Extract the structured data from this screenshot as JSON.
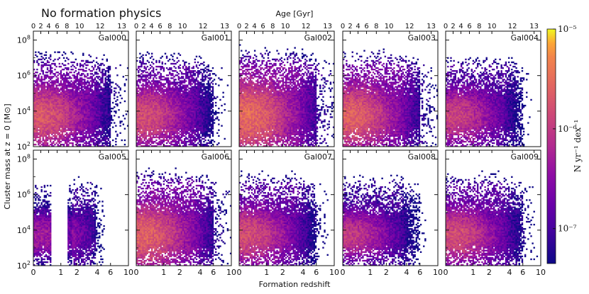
{
  "figure_title": "No formation physics",
  "chart_data": {
    "type": "heatmap",
    "title": "No formation physics",
    "top_axis_label": "Age [Gyr]",
    "top_ticks": [
      "0",
      "2",
      "4",
      "6",
      "8",
      "10",
      "12",
      "13"
    ],
    "top_tick_age": [
      0,
      2,
      4,
      6,
      8,
      10,
      12,
      13
    ],
    "xlabel": "Formation redshift",
    "x_ticks": [
      "0",
      "1",
      "2",
      "4",
      "6",
      "10"
    ],
    "x_tick_values": [
      0,
      1,
      2,
      4,
      6,
      10
    ],
    "xlim": [
      0,
      10
    ],
    "ylabel": "Cluster mass at z = 0 [M⊙]",
    "y_tick_exponents": [
      2,
      4,
      6,
      8
    ],
    "ylim_log10": [
      2,
      8.5
    ],
    "colorbar_label": "N yr⁻¹ dex⁻¹",
    "colorbar_ticks": [
      {
        "label": "10⁻⁵",
        "exponent": -5
      },
      {
        "label": "10⁻⁶",
        "exponent": -6
      },
      {
        "label": "10⁻⁷",
        "exponent": -7
      }
    ],
    "colorbar_range_log10": [
      -7.35,
      -5
    ],
    "colormap": "plasma",
    "panels": [
      {
        "name": "Gal000",
        "peak_log_density": -5.7,
        "spread": 1.0,
        "gap": false
      },
      {
        "name": "Gal001",
        "peak_log_density": -5.8,
        "spread": 1.0,
        "gap": false
      },
      {
        "name": "Gal002",
        "peak_log_density": -5.5,
        "spread": 1.1,
        "gap": false
      },
      {
        "name": "Gal003",
        "peak_log_density": -5.6,
        "spread": 1.0,
        "gap": false
      },
      {
        "name": "Gal004",
        "peak_log_density": -5.9,
        "spread": 0.9,
        "gap": false
      },
      {
        "name": "Gal005",
        "peak_log_density": -6.3,
        "spread": 0.8,
        "gap": true
      },
      {
        "name": "Gal006",
        "peak_log_density": -5.6,
        "spread": 1.0,
        "gap": false
      },
      {
        "name": "Gal007",
        "peak_log_density": -5.8,
        "spread": 0.9,
        "gap": false
      },
      {
        "name": "Gal008",
        "peak_log_density": -6.0,
        "spread": 0.8,
        "gap": false
      },
      {
        "name": "Gal009",
        "peak_log_density": -5.8,
        "spread": 0.9,
        "gap": false
      }
    ]
  }
}
